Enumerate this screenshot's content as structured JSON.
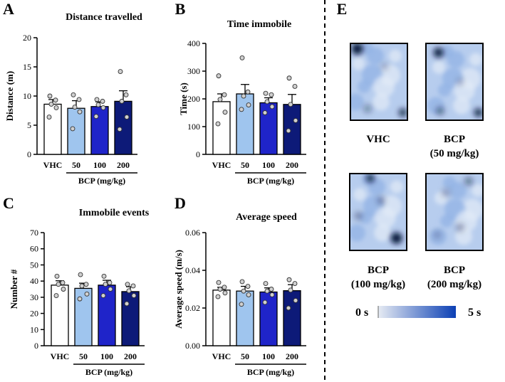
{
  "colors": {
    "vhc": "#ffffff",
    "bcp50": "#9fc5ee",
    "bcp100": "#1f24c9",
    "bcp200": "#0d1a78",
    "heat_low": "#e6ebf3",
    "heat_high": "#0b3fb4",
    "divider": "#000000"
  },
  "chart_data": [
    {
      "panel": "A",
      "type": "bar",
      "title": "Distance travelled",
      "ylabel": "Distance (m)",
      "xlabel": "BCP (mg/kg)",
      "categories": [
        "VHC",
        "50",
        "100",
        "200"
      ],
      "ylim": [
        0,
        20
      ],
      "yticks": [
        "0",
        "5",
        "10",
        "15",
        "20"
      ],
      "values": [
        8.6,
        7.9,
        8.2,
        9.1
      ],
      "errors": [
        0.8,
        1.3,
        0.8,
        1.8
      ],
      "points": [
        [
          6.4,
          8.0,
          8.6,
          9.3,
          10.0
        ],
        [
          4.4,
          7.3,
          8.1,
          9.4,
          10.2
        ],
        [
          6.5,
          8.0,
          8.5,
          9.1,
          9.4
        ],
        [
          4.3,
          6.4,
          9.1,
          10.2,
          14.2
        ]
      ]
    },
    {
      "panel": "B",
      "type": "bar",
      "title": "Time immobile",
      "ylabel": "Time (s)",
      "xlabel": "BCP (mg/kg)",
      "categories": [
        "VHC",
        "50",
        "100",
        "200"
      ],
      "ylim": [
        0,
        400
      ],
      "yticks": [
        "0",
        "100",
        "200",
        "300",
        "400"
      ],
      "values": [
        190,
        218,
        186,
        180
      ],
      "errors": [
        28,
        34,
        18,
        36
      ],
      "points": [
        [
          110,
          152,
          198,
          215,
          283
        ],
        [
          162,
          178,
          210,
          225,
          348
        ],
        [
          150,
          172,
          190,
          215,
          220
        ],
        [
          85,
          122,
          180,
          245,
          275
        ]
      ]
    },
    {
      "panel": "C",
      "type": "bar",
      "title": "Immobile events",
      "ylabel": "Number #",
      "xlabel": "BCP (mg/kg)",
      "categories": [
        "VHC",
        "50",
        "100",
        "200"
      ],
      "ylim": [
        0,
        70
      ],
      "yticks": [
        "0",
        "10",
        "20",
        "30",
        "40",
        "50",
        "60",
        "70"
      ],
      "values": [
        37.5,
        35.5,
        37.5,
        33.5
      ],
      "errors": [
        2.7,
        3.2,
        3.0,
        3.0
      ],
      "points": [
        [
          31,
          35,
          38,
          39,
          43
        ],
        [
          29,
          32,
          37,
          38,
          44
        ],
        [
          31,
          35,
          38,
          39,
          43
        ],
        [
          26,
          31,
          34,
          37,
          38
        ]
      ]
    },
    {
      "panel": "D",
      "type": "bar",
      "title": "Average speed",
      "ylabel": "Average speed (m/s)",
      "xlabel": "BCP (mg/kg)",
      "categories": [
        "VHC",
        "50",
        "100",
        "200"
      ],
      "ylim": [
        0,
        0.06
      ],
      "yticks": [
        "0.00",
        "0.02",
        "0.04",
        "0.06"
      ],
      "values": [
        0.0295,
        0.029,
        0.0285,
        0.0292
      ],
      "errors": [
        0.0015,
        0.0025,
        0.0022,
        0.0032
      ],
      "points": [
        [
          0.026,
          0.028,
          0.03,
          0.031,
          0.0335
        ],
        [
          0.022,
          0.027,
          0.029,
          0.0315,
          0.034
        ],
        [
          0.023,
          0.027,
          0.029,
          0.03,
          0.033
        ],
        [
          0.02,
          0.024,
          0.0295,
          0.033,
          0.035
        ]
      ]
    }
  ],
  "panel_e": {
    "letter": "E",
    "maps": [
      {
        "id": "vhc",
        "label_lines": [
          "VHC"
        ]
      },
      {
        "id": "bcp50",
        "label_lines": [
          "BCP",
          "(50 mg/kg)"
        ]
      },
      {
        "id": "bcp100",
        "label_lines": [
          "BCP",
          "(100 mg/kg)"
        ]
      },
      {
        "id": "bcp200",
        "label_lines": [
          "BCP",
          "(200 mg/kg)"
        ]
      }
    ],
    "scale": {
      "min_label": "0 s",
      "max_label": "5 s"
    }
  }
}
